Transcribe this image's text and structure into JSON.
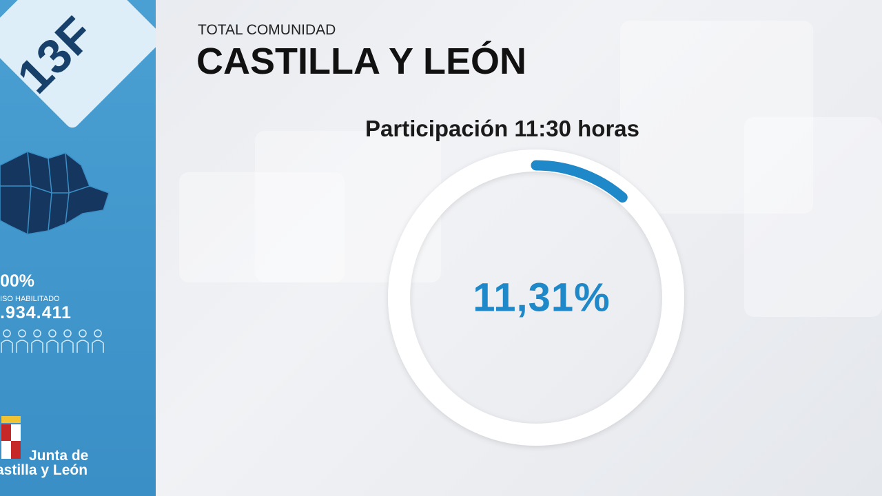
{
  "sidebar": {
    "badge": "13F",
    "turnout": "00%",
    "census_label": "ISO HABILITADO",
    "census": ".934.411",
    "institution": [
      "Junta de",
      "astilla y León"
    ]
  },
  "header": {
    "kicker": "TOTAL COMUNIDAD",
    "title": "CASTILLA Y LEÓN"
  },
  "gauge": {
    "title": "Participación 11:30 horas",
    "value": 11.31,
    "value_label": "11,31%",
    "color": "#1e88c8",
    "track_color": "#ffffff"
  }
}
